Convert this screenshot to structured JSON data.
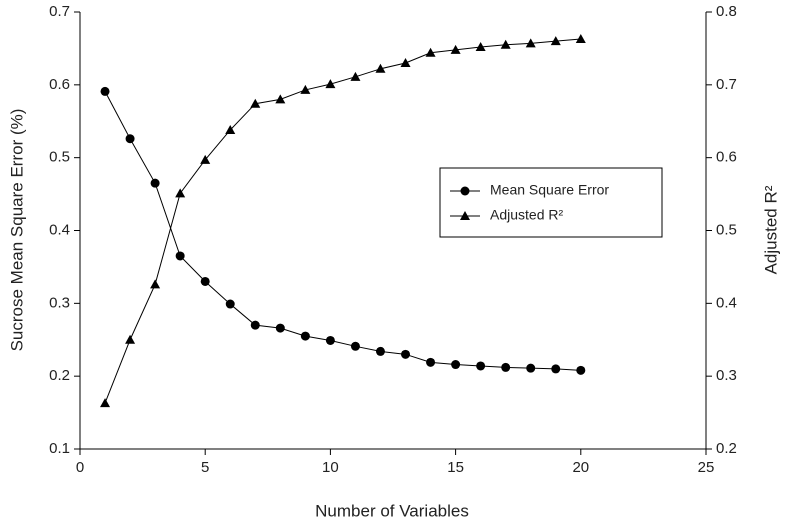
{
  "chart_data": {
    "type": "line",
    "x_label": "Number of Variables",
    "y_label": "Sucrose Mean Square Error (%)",
    "y2_label": "Adjusted R²",
    "xlim": [
      0,
      25
    ],
    "xticks": [
      0,
      5,
      10,
      15,
      20,
      25
    ],
    "ylim": [
      0.1,
      0.7
    ],
    "yticks": [
      0.1,
      0.2,
      0.3,
      0.4,
      0.5,
      0.6,
      0.7
    ],
    "y2lim": [
      0.2,
      0.8
    ],
    "y2ticks": [
      0.2,
      0.3,
      0.4,
      0.5,
      0.6,
      0.7,
      0.8
    ],
    "series": [
      {
        "name": "Mean Square Error",
        "color": "#000000",
        "marker": "circle",
        "x": [
          1,
          2,
          3,
          4,
          5,
          6,
          7,
          8,
          9,
          10,
          11,
          12,
          13,
          14,
          15,
          16,
          17,
          18,
          19,
          20
        ],
        "values": [
          0.591,
          0.526,
          0.465,
          0.365,
          0.33,
          0.299,
          0.27,
          0.266,
          0.255,
          0.249,
          0.241,
          0.234,
          0.23,
          0.219,
          0.216,
          0.214,
          0.212,
          0.211,
          0.21,
          0.208
        ]
      },
      {
        "name": "Adjusted R²",
        "color": "#000000",
        "marker": "triangle",
        "axis": "y2",
        "x": [
          1,
          2,
          3,
          4,
          5,
          6,
          7,
          8,
          9,
          10,
          11,
          12,
          13,
          14,
          15,
          16,
          17,
          18,
          19,
          20
        ],
        "values": [
          0.263,
          0.35,
          0.426,
          0.551,
          0.597,
          0.638,
          0.674,
          0.68,
          0.693,
          0.701,
          0.711,
          0.722,
          0.73,
          0.744,
          0.748,
          0.752,
          0.755,
          0.757,
          0.76,
          0.763
        ]
      }
    ]
  }
}
